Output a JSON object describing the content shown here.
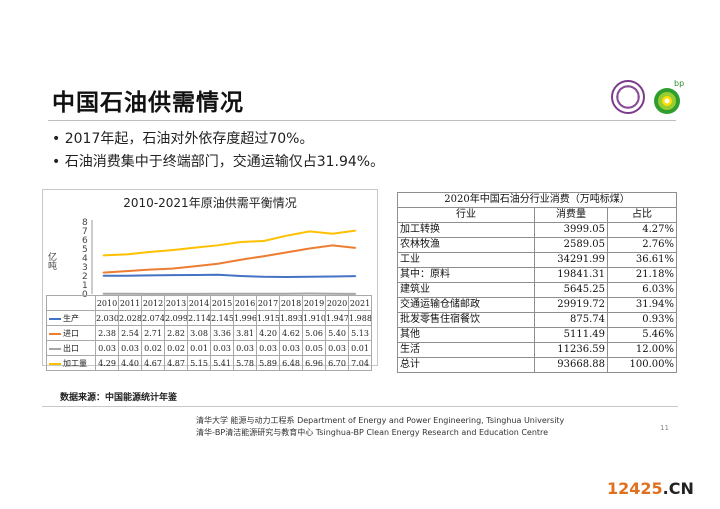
{
  "page": {
    "title": "中国石油供需情况",
    "bullets": [
      "2017年起，石油对外依存度超过70%。",
      "石油消费集中于终端部门，交通运输仅占31.94%。"
    ],
    "source": "数据来源：中国能源统计年鉴",
    "footer_line1": "清华大学 能源与动力工程系 Department of Energy and Power Engineering, Tsinghua University",
    "footer_line2": "清华-BP清洁能源研究与教育中心 Tsinghua-BP Clean Energy Research and Education Centre",
    "page_number": "11",
    "watermark_main": "12425",
    "watermark_suffix": ".CN",
    "logo_text": "bp"
  },
  "chart_data": {
    "type": "line",
    "title": "2010-2021年原油供需平衡情况",
    "ylabel": "亿吨",
    "ylim": [
      0,
      8
    ],
    "yticks": [
      "0",
      "1",
      "2",
      "3",
      "4",
      "5",
      "6",
      "7",
      "8"
    ],
    "grid": false,
    "legend": "table-left",
    "categories": [
      "2010",
      "2011",
      "2012",
      "2013",
      "2014",
      "2015",
      "2016",
      "2017",
      "2018",
      "2019",
      "2020",
      "2021"
    ],
    "series": [
      {
        "name": "生产",
        "color": "#4472c4",
        "labels": [
          "2.030",
          "2.028",
          "2.074",
          "2.099",
          "2.114",
          "2.145",
          "1.996",
          "1.915",
          "1.893",
          "1.910",
          "1.947",
          "1.988"
        ],
        "values": [
          2.03,
          2.028,
          2.074,
          2.099,
          2.114,
          2.145,
          1.996,
          1.915,
          1.893,
          1.91,
          1.947,
          1.988
        ]
      },
      {
        "name": "进口",
        "color": "#ed7d31",
        "labels": [
          "2.38",
          "2.54",
          "2.71",
          "2.82",
          "3.08",
          "3.36",
          "3.81",
          "4.20",
          "4.62",
          "5.06",
          "5.40",
          "5.13"
        ],
        "values": [
          2.38,
          2.54,
          2.71,
          2.82,
          3.08,
          3.36,
          3.81,
          4.2,
          4.62,
          5.06,
          5.4,
          5.13
        ]
      },
      {
        "name": "出口",
        "color": "#a5a5a5",
        "labels": [
          "0.03",
          "0.03",
          "0.02",
          "0.02",
          "0.01",
          "0.03",
          "0.03",
          "0.03",
          "0.03",
          "0.05",
          "0.03",
          "0.01"
        ],
        "values": [
          0.03,
          0.03,
          0.02,
          0.02,
          0.01,
          0.03,
          0.03,
          0.03,
          0.03,
          0.05,
          0.03,
          0.01
        ]
      },
      {
        "name": "加工量",
        "color": "#ffc000",
        "labels": [
          "4.29",
          "4.40",
          "4.67",
          "4.87",
          "5.15",
          "5.41",
          "5.78",
          "5.89",
          "6.48",
          "6.96",
          "6.70",
          "7.04"
        ],
        "values": [
          4.29,
          4.4,
          4.67,
          4.87,
          5.15,
          5.41,
          5.78,
          5.89,
          6.48,
          6.96,
          6.7,
          7.04
        ]
      }
    ]
  },
  "consumption_table": {
    "caption": "2020年中国石油分行业消费（万吨标煤）",
    "headers": [
      "行业",
      "消费量",
      "占比"
    ],
    "rows": [
      {
        "name": "加工转换",
        "value": "3999.05",
        "share": "4.27%"
      },
      {
        "name": "农林牧渔",
        "value": "2589.05",
        "share": "2.76%"
      },
      {
        "name": "工业",
        "value": "34291.99",
        "share": "36.61%"
      },
      {
        "name": "其中：原料",
        "value": "19841.31",
        "share": "21.18%"
      },
      {
        "name": "建筑业",
        "value": "5645.25",
        "share": "6.03%"
      },
      {
        "name": "交通运输仓储邮政",
        "value": "29919.72",
        "share": "31.94%"
      },
      {
        "name": "批发零售住宿餐饮",
        "value": "875.74",
        "share": "0.93%"
      },
      {
        "name": "其他",
        "value": "5111.49",
        "share": "5.46%"
      },
      {
        "name": "生活",
        "value": "11236.59",
        "share": "12.00%"
      },
      {
        "name": "总计",
        "value": "93668.88",
        "share": "100.00%"
      }
    ]
  }
}
